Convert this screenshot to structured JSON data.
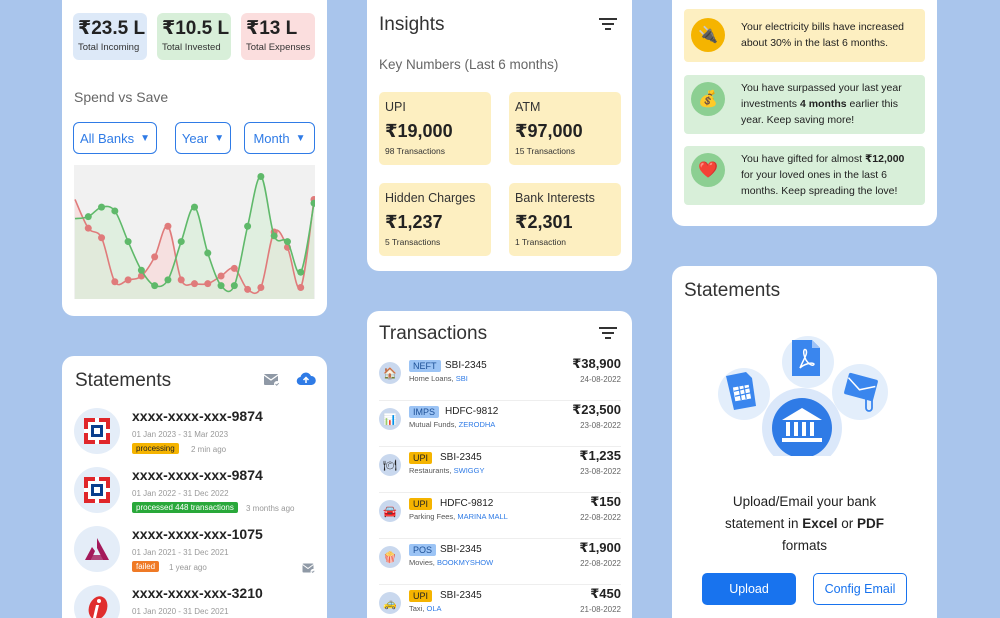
{
  "summary": {
    "stats": [
      {
        "amount": "₹23.5 L",
        "label": "Total Incoming",
        "color": "#dde9f8"
      },
      {
        "amount": "₹10.5 L",
        "label": "Total Invested",
        "color": "#d8efd9"
      },
      {
        "amount": "₹13 L",
        "label": "Total Expenses",
        "color": "#fbdede"
      }
    ],
    "section_title": "Spend vs Save",
    "filters": [
      "All Banks",
      "Year",
      "Month"
    ]
  },
  "chart_data": {
    "type": "area",
    "series": [
      {
        "color": "#e07b7b",
        "values": [
          5.2,
          3.7,
          3.2,
          0.9,
          1.0,
          1.2,
          2.2,
          3.8,
          1.0,
          0.8,
          0.8,
          1.2,
          1.6,
          0.5,
          0.6,
          3.5,
          2.7,
          0.6,
          5.2
        ]
      },
      {
        "color": "#5fb96a",
        "values": [
          4.2,
          4.3,
          4.8,
          4.6,
          3.0,
          1.5,
          0.7,
          1.0,
          3.0,
          4.8,
          2.4,
          0.7,
          0.7,
          3.8,
          6.4,
          3.3,
          3.0,
          1.4,
          5.0
        ]
      }
    ]
  },
  "statements": {
    "title": "Statements",
    "items": [
      {
        "account": "xxxx-xxxx-xxx-9874",
        "range": "01 Jan 2023 - 31 Mar 2023",
        "status": "processing",
        "status_color": "#f5b400",
        "ago": "2 min ago"
      },
      {
        "account": "xxxx-xxxx-xxx-9874",
        "range": "01 Jan 2022 - 31 Dec 2022",
        "status": "processed 448 transactions",
        "status_color": "#29a83a",
        "ago": "3 months ago"
      },
      {
        "account": "xxxx-xxxx-xxx-1075",
        "range": "01 Jan 2021 - 31 Dec 2021",
        "status": "failed",
        "status_color": "#ef7a26",
        "ago": "1 year ago"
      },
      {
        "account": "xxxx-xxxx-xxx-3210",
        "range": "01 Jan 2020 - 31 Dec 2021"
      }
    ]
  },
  "insights": {
    "title": "Insights",
    "subtitle": "Key Numbers (Last 6 months)",
    "tiles": [
      {
        "label": "UPI",
        "amount": "₹19,000",
        "sub": "98 Transactions"
      },
      {
        "label": "ATM",
        "amount": "₹97,000",
        "sub": "15 Transactions"
      },
      {
        "label": "Hidden Charges",
        "amount": "₹1,237",
        "sub": "5 Transactions"
      },
      {
        "label": "Bank Interests",
        "amount": "₹2,301",
        "sub": "1 Transaction"
      }
    ]
  },
  "transactions": {
    "title": "Transactions",
    "items": [
      {
        "icon": "🏠",
        "mode": "NEFT",
        "account": "SBI-2345",
        "category": "Home Loans,",
        "merchant": "SBI",
        "amount": "₹38,900",
        "date": "24-08-2022"
      },
      {
        "icon": "📊",
        "mode": "IMPS",
        "account": "HDFC-9812",
        "category": "Mutual Funds,",
        "merchant": "ZERODHA",
        "amount": "₹23,500",
        "date": "23-08-2022"
      },
      {
        "icon": "🍽",
        "mode": "UPI",
        "account": "SBI-2345",
        "category": "Restaurants,",
        "merchant": "SWIGGY",
        "amount": "₹1,235",
        "date": "23-08-2022"
      },
      {
        "icon": "🚘",
        "mode": "UPI",
        "account": "HDFC-9812",
        "category": "Parking Fees,",
        "merchant": "MARINA MALL",
        "amount": "₹150",
        "date": "22-08-2022"
      },
      {
        "icon": "🍿",
        "mode": "POS",
        "account": "SBI-2345",
        "category": "Movies,",
        "merchant": "BOOKMYSHOW",
        "amount": "₹1,900",
        "date": "22-08-2022"
      },
      {
        "icon": "🚕",
        "mode": "UPI",
        "account": "SBI-2345",
        "category": "Taxi,",
        "merchant": "OLA",
        "amount": "₹450",
        "date": "21-08-2022"
      }
    ]
  },
  "alerts": {
    "items": [
      {
        "icon": "🔌",
        "bg": "#fdefc1",
        "icon_bg": "#f5b400",
        "line1": "Your electricity bills have increased",
        "line2": "about 30% in the last 6 months."
      },
      {
        "icon": "💰",
        "bg": "#d8efd9",
        "icon_bg": "#8ccf92",
        "line1a": "You have surpassed your last year",
        "line2a": "investments ",
        "bold": "4 months",
        "line2b": " earlier this",
        "line3": "year. Keep saving more!"
      },
      {
        "icon": "❤️",
        "bg": "#d8efd9",
        "icon_bg": "#8ccf92",
        "line1a": "You have gifted for almost ",
        "bold": "₹12,000",
        "line2": "for your loved ones in the last 6",
        "line3": "months. Keep spreading the love!"
      }
    ]
  },
  "right_statements": {
    "title": "Statements",
    "line1": "Upload/Email your bank",
    "line2a": "statement in ",
    "excel": "Excel",
    "or": " or ",
    "pdf": "PDF",
    "line3": "formats",
    "upload_label": "Upload",
    "config_label": "Config Email"
  }
}
